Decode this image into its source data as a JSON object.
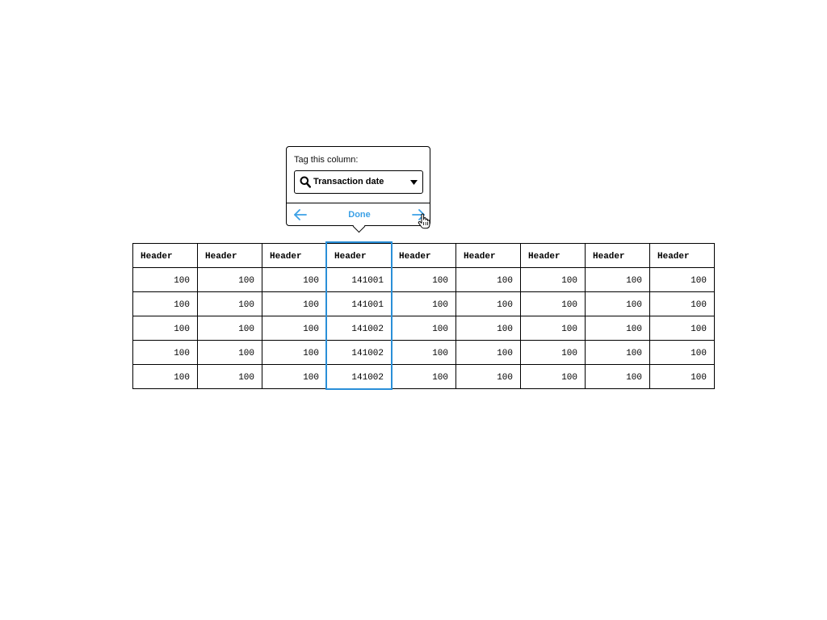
{
  "popover": {
    "label": "Tag this column:",
    "select_value": "Transaction date",
    "done_label": "Done"
  },
  "colors": {
    "accent": "#3ba0e6",
    "highlight_border": "#2a8fd8"
  },
  "icons": {
    "search": "search-icon",
    "caret": "caret-down-icon",
    "prev": "arrow-left-icon",
    "next": "arrow-right-icon",
    "cursor": "hand-cursor-icon"
  },
  "table": {
    "selected_column_index": 3,
    "headers": [
      "Header",
      "Header",
      "Header",
      "Header",
      "Header",
      "Header",
      "Header",
      "Header",
      "Header"
    ],
    "rows": [
      [
        "100",
        "100",
        "100",
        "141001",
        "100",
        "100",
        "100",
        "100",
        "100"
      ],
      [
        "100",
        "100",
        "100",
        "141001",
        "100",
        "100",
        "100",
        "100",
        "100"
      ],
      [
        "100",
        "100",
        "100",
        "141002",
        "100",
        "100",
        "100",
        "100",
        "100"
      ],
      [
        "100",
        "100",
        "100",
        "141002",
        "100",
        "100",
        "100",
        "100",
        "100"
      ],
      [
        "100",
        "100",
        "100",
        "141002",
        "100",
        "100",
        "100",
        "100",
        "100"
      ]
    ]
  }
}
